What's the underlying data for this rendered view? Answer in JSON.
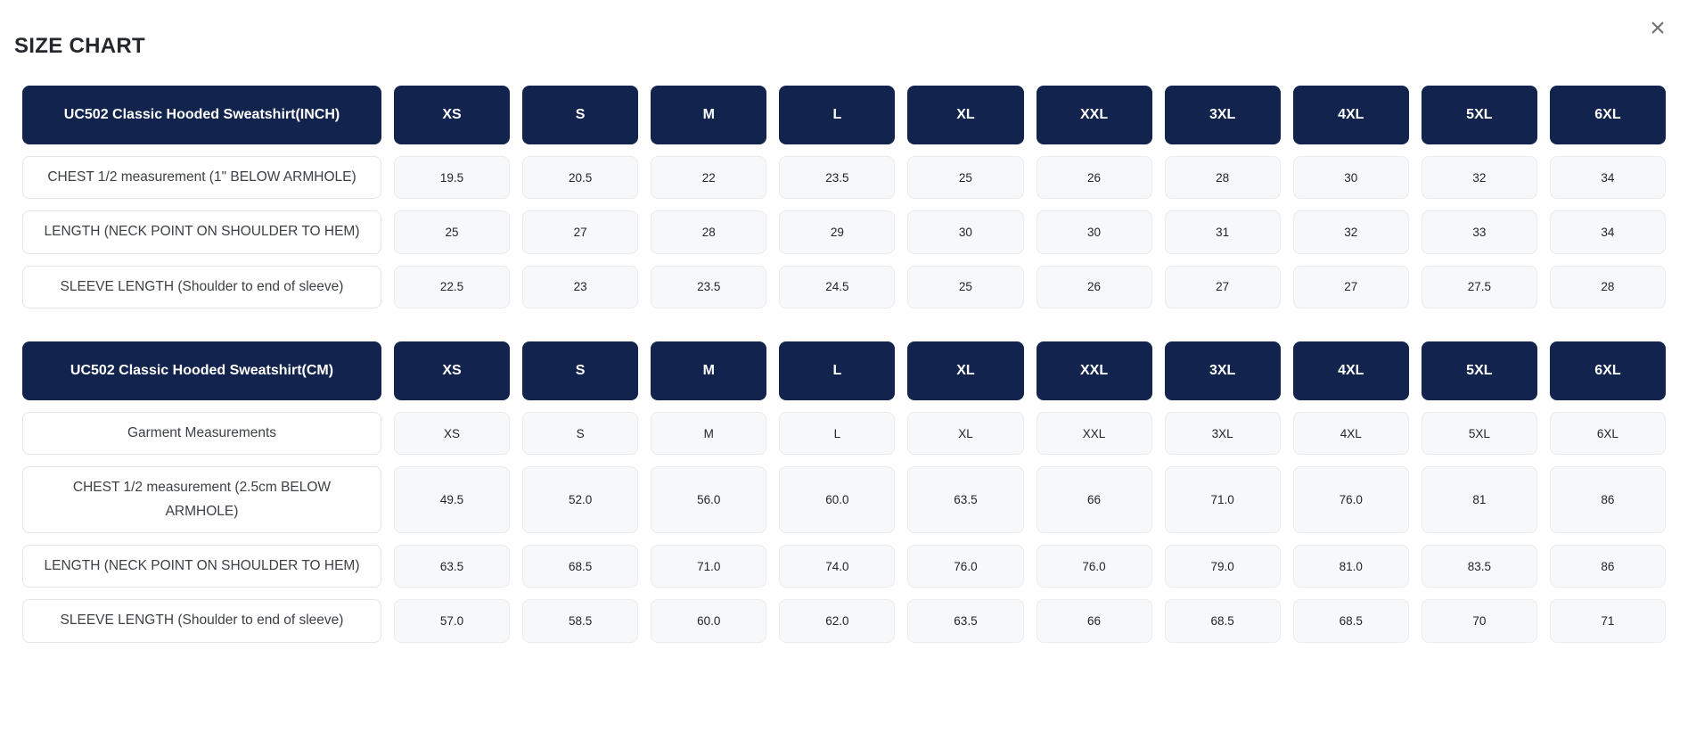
{
  "page": {
    "title": "SIZE CHART",
    "close_label": "×"
  },
  "colors": {
    "header_navy": "#12234e",
    "header_text": "#ffffff",
    "value_cell_bg": "#f7f8f9",
    "title_text": "#24272b",
    "close_icon": "#6f7478"
  },
  "sizes": [
    "XS",
    "S",
    "M",
    "L",
    "XL",
    "XXL",
    "3XL",
    "4XL",
    "5XL",
    "6XL"
  ],
  "tables": [
    {
      "id": "inch",
      "header_label": "UC502 Classic Hooded Sweatshirt(INCH)",
      "rows": [
        {
          "label": "CHEST 1/2 measurement (1\" BELOW ARMHOLE)",
          "values": [
            "19.5",
            "20.5",
            "22",
            "23.5",
            "25",
            "26",
            "28",
            "30",
            "32",
            "34"
          ]
        },
        {
          "label": "LENGTH (NECK POINT ON SHOULDER TO HEM)",
          "values": [
            "25",
            "27",
            "28",
            "29",
            "30",
            "30",
            "31",
            "32",
            "33",
            "34"
          ]
        },
        {
          "label": "SLEEVE LENGTH (Shoulder to end of sleeve)",
          "values": [
            "22.5",
            "23",
            "23.5",
            "24.5",
            "25",
            "26",
            "27",
            "27",
            "27.5",
            "28"
          ]
        }
      ]
    },
    {
      "id": "cm",
      "header_label": "UC502 Classic Hooded Sweatshirt(CM)",
      "rows": [
        {
          "label": "Garment Measurements",
          "values": [
            "XS",
            "S",
            "M",
            "L",
            "XL",
            "XXL",
            "3XL",
            "4XL",
            "5XL",
            "6XL"
          ]
        },
        {
          "label": "CHEST 1/2 measurement (2.5cm BELOW ARMHOLE)",
          "values": [
            "49.5",
            "52.0",
            "56.0",
            "60.0",
            "63.5",
            "66",
            "71.0",
            "76.0",
            "81",
            "86"
          ]
        },
        {
          "label": "LENGTH (NECK POINT ON SHOULDER TO HEM)",
          "values": [
            "63.5",
            "68.5",
            "71.0",
            "74.0",
            "76.0",
            "76.0",
            "79.0",
            "81.0",
            "83.5",
            "86"
          ]
        },
        {
          "label": "SLEEVE LENGTH (Shoulder to end of sleeve)",
          "values": [
            "57.0",
            "58.5",
            "60.0",
            "62.0",
            "63.5",
            "66",
            "68.5",
            "68.5",
            "70",
            "71"
          ]
        }
      ]
    }
  ]
}
